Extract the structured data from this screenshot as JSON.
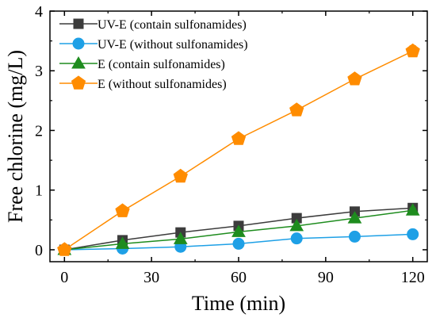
{
  "chart_data": {
    "type": "line",
    "xlabel": "Time (min)",
    "ylabel": "Free chlorine (mg/L)",
    "xlim": [
      -5,
      125
    ],
    "ylim": [
      -0.2,
      4.0
    ],
    "xticks": [
      0,
      30,
      60,
      90,
      120
    ],
    "yticks": [
      0,
      1,
      2,
      3,
      4
    ],
    "x": [
      0,
      20,
      40,
      60,
      80,
      100,
      120
    ],
    "grid": false,
    "legend_position": "top-left",
    "series": [
      {
        "name": "UV-E (contain sulfonamides)",
        "marker": "square",
        "color": "#3c3c3c",
        "values": [
          0.0,
          0.16,
          0.29,
          0.4,
          0.53,
          0.64,
          0.7
        ],
        "errors": [
          0.02,
          0.03,
          0.03,
          0.04,
          0.04,
          0.05,
          0.05
        ]
      },
      {
        "name": "UV-E (without sulfonamides)",
        "marker": "circle",
        "color": "#1ea0e6",
        "values": [
          0.0,
          0.02,
          0.05,
          0.1,
          0.19,
          0.22,
          0.26
        ],
        "errors": [
          0.01,
          0.02,
          0.02,
          0.02,
          0.03,
          0.03,
          0.03
        ]
      },
      {
        "name": "E (contain sulfonamides)",
        "marker": "triangle",
        "color": "#1e8c1e",
        "values": [
          0.0,
          0.1,
          0.18,
          0.3,
          0.4,
          0.53,
          0.66
        ],
        "errors": [
          0.01,
          0.02,
          0.02,
          0.03,
          0.03,
          0.04,
          0.04
        ]
      },
      {
        "name": "E (without  sulfonamides)",
        "marker": "pentagon",
        "color": "#ff8c00",
        "values": [
          0.0,
          0.65,
          1.23,
          1.86,
          2.34,
          2.86,
          3.33
        ],
        "errors": [
          0.02,
          0.04,
          0.05,
          0.05,
          0.06,
          0.08,
          0.09
        ]
      }
    ]
  }
}
